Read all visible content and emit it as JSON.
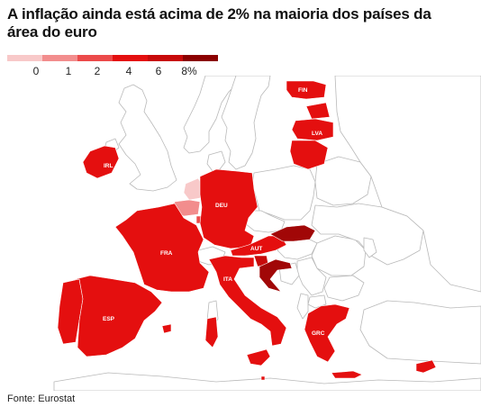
{
  "title": "A inflação ainda está acima de 2% na maioria dos países da área do euro",
  "legend": {
    "ticks": [
      "0",
      "1",
      "2",
      "4",
      "6",
      "8%"
    ],
    "colors": [
      "#f8c9c9",
      "#f28d8d",
      "#ec4a4a",
      "#e40f0f",
      "#c80a0a",
      "#8b0000"
    ]
  },
  "countries": {
    "FIN": {
      "label": "FIN",
      "color": "#e40f0f"
    },
    "LVA": {
      "label": "LVA",
      "color": "#e40f0f"
    },
    "IRL": {
      "label": "IRL",
      "color": "#e40f0f"
    },
    "DEU": {
      "label": "DEU",
      "color": "#e40f0f"
    },
    "FRA": {
      "label": "FRA",
      "color": "#e40f0f"
    },
    "AUT": {
      "label": "AUT",
      "color": "#e40f0f"
    },
    "ITA": {
      "label": "ITA",
      "color": "#e40f0f"
    },
    "ESP": {
      "label": "ESP",
      "color": "#e40f0f"
    },
    "GRC": {
      "label": "GRC",
      "color": "#e40f0f"
    }
  },
  "source": "Fonte: Eurostat"
}
